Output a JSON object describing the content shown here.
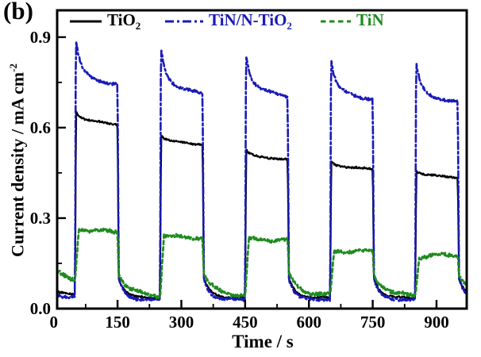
{
  "panel_label": "(b)",
  "axes": {
    "x": {
      "title": "Time / s"
    },
    "y": {
      "title": "Current density / mA cm",
      "title_sup": "-2"
    }
  },
  "legend": {
    "position": "top-inside",
    "items": [
      {
        "id": "tio2",
        "label": "TiO",
        "sub": "2",
        "color": "#000000",
        "style": "solid"
      },
      {
        "id": "tin-n-tio2",
        "label": "TiN/N-TiO",
        "sub": "2",
        "color": "#1a1ab8",
        "style": "dash-dot"
      },
      {
        "id": "tin",
        "label": "TiN",
        "sub": "",
        "color": "#1f8b1f",
        "style": "dash"
      }
    ]
  },
  "chart_data": {
    "type": "line",
    "title": "",
    "xlabel": "Time / s",
    "ylabel": "Current density / mA cm^-2",
    "grid": false,
    "x_range": [
      8,
      971
    ],
    "y_range": [
      0,
      0.989
    ],
    "x_ticks": {
      "values": [
        0,
        150,
        300,
        450,
        600,
        750,
        900
      ],
      "labels": [
        "0",
        "150",
        "300",
        "450",
        "600",
        "750",
        "900"
      ]
    },
    "x_minor_ticks": [
      75,
      225,
      375,
      525,
      675,
      825
    ],
    "y_ticks": {
      "values": [
        0.0,
        0.3,
        0.6,
        0.9
      ],
      "labels": [
        "0.0",
        "0.3",
        "0.6",
        "0.9"
      ]
    },
    "y_minor_ticks": [
      0.15,
      0.45,
      0.75
    ],
    "light_on_times": [
      50,
      250,
      450,
      650,
      850
    ],
    "light_off_times": [
      150,
      350,
      550,
      750,
      950
    ],
    "series": [
      {
        "name": "TiO2",
        "id": "tio2",
        "color": "#000000",
        "line": "solid",
        "width": 2.2,
        "dark_level": 0.036,
        "noise": 0.003,
        "wobble": 0.0015,
        "pre": {
          "start": 0.055,
          "end": 0.042,
          "tau": 40
        },
        "dyn": {
          "rise": 2.5,
          "fast_frac": 0.3,
          "fast_tau": 7,
          "slow_tau": 120,
          "off_start": 0.1,
          "off_tau": 15
        },
        "cycles": [
          {
            "on": 50,
            "off": 150,
            "peak": 0.655,
            "end": 0.59
          },
          {
            "on": 250,
            "off": 350,
            "peak": 0.575,
            "end": 0.53
          },
          {
            "on": 450,
            "off": 550,
            "peak": 0.525,
            "end": 0.48
          },
          {
            "on": 650,
            "off": 750,
            "peak": 0.487,
            "end": 0.452
          },
          {
            "on": 850,
            "off": 950,
            "peak": 0.458,
            "end": 0.425
          }
        ]
      },
      {
        "name": "TiN/N-TiO2",
        "id": "tin-n-tio2",
        "color": "#1a1ab8",
        "line": "dash-dot",
        "width": 2.6,
        "dark_level": 0.03,
        "noise": 0.0045,
        "wobble": 0.002,
        "pre": {
          "start": 0.045,
          "end": 0.034,
          "tau": 40
        },
        "dyn": {
          "rise": 2,
          "fast_frac": 0.58,
          "fast_tau": 9,
          "slow_tau": 60,
          "off_start": 0.1,
          "off_tau": 13
        },
        "cycles": [
          {
            "on": 50,
            "off": 150,
            "peak": 0.895,
            "end": 0.728
          },
          {
            "on": 250,
            "off": 350,
            "peak": 0.868,
            "end": 0.7
          },
          {
            "on": 450,
            "off": 550,
            "peak": 0.848,
            "end": 0.692
          },
          {
            "on": 650,
            "off": 750,
            "peak": 0.828,
            "end": 0.682
          },
          {
            "on": 850,
            "off": 950,
            "peak": 0.818,
            "end": 0.672
          }
        ]
      },
      {
        "name": "TiN",
        "id": "tin",
        "color": "#1f8b1f",
        "line": "dash",
        "width": 2.7,
        "dark_level": 0.042,
        "noise": 0.006,
        "wobble": 0.004,
        "pre": {
          "start": 0.125,
          "end": 0.082,
          "tau": 30
        },
        "dyn": {
          "rise": 9,
          "fast_frac": 0.45,
          "fast_tau": 14,
          "slow_tau": 400,
          "off_start": 0.112,
          "off_tau": 26
        },
        "cycles": [
          {
            "on": 50,
            "off": 150,
            "peak": 0.267,
            "end": 0.247
          },
          {
            "on": 250,
            "off": 350,
            "peak": 0.243,
            "end": 0.23
          },
          {
            "on": 450,
            "off": 550,
            "peak": 0.232,
            "end": 0.224
          },
          {
            "on": 650,
            "off": 750,
            "peak": 0.19,
            "end": 0.19
          },
          {
            "on": 850,
            "off": 950,
            "peak": 0.168,
            "end": 0.186
          }
        ]
      }
    ]
  }
}
